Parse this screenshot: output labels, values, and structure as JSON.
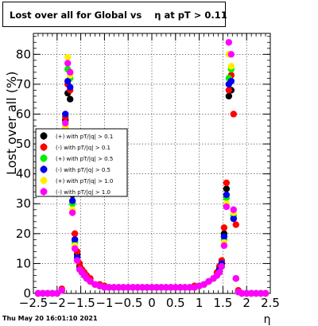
{
  "title": "Lost over all for Global vs    η at pT > 0.11",
  "timestamp": "Thu May 20 16:01:10 2021",
  "chart_data": {
    "type": "scatter",
    "xlabel": "η",
    "ylabel": "Lost over all (%)",
    "xlim": [
      -2.5,
      2.5
    ],
    "ylim": [
      0,
      87
    ],
    "xticks": [
      "−2.5",
      "−2",
      "−1.5",
      "−1",
      "−0.5",
      "0",
      "0.5",
      "1",
      "1.5",
      "2",
      "2.5"
    ],
    "yticks": [
      "0",
      "10",
      "20",
      "30",
      "40",
      "50",
      "60",
      "70",
      "80"
    ],
    "grid": true,
    "legend_position": "left-middle",
    "x": [
      -2.4,
      -2.3,
      -2.2,
      -2.1,
      -2.0,
      -1.9,
      -1.825,
      -1.775,
      -1.725,
      -1.675,
      -1.625,
      -1.575,
      -1.525,
      -1.475,
      -1.425,
      -1.375,
      -1.3,
      -1.2,
      -1.1,
      -1.0,
      -0.9,
      -0.8,
      -0.7,
      -0.6,
      -0.5,
      -0.4,
      -0.3,
      -0.2,
      -0.1,
      0.0,
      0.1,
      0.2,
      0.3,
      0.4,
      0.5,
      0.6,
      0.7,
      0.8,
      0.9,
      1.0,
      1.1,
      1.2,
      1.3,
      1.375,
      1.425,
      1.475,
      1.525,
      1.575,
      1.625,
      1.675,
      1.725,
      1.775,
      1.825,
      1.9,
      2.0,
      2.1,
      2.2,
      2.3,
      2.4
    ],
    "series": [
      {
        "name": "(+) with pT/|q| > 0.1",
        "color": "#000000",
        "values": [
          0,
          0,
          0,
          0,
          0,
          1,
          58,
          67,
          65,
          33,
          18,
          13,
          9,
          7,
          6,
          5,
          4,
          3,
          2.5,
          2,
          2,
          2,
          2,
          2,
          2,
          2,
          2,
          2,
          2,
          2,
          2,
          2,
          2,
          2,
          2,
          2,
          2,
          2,
          2,
          2.5,
          3,
          4,
          5,
          6,
          8,
          10,
          20,
          35,
          66,
          68,
          25,
          5,
          0.5,
          0,
          0,
          0,
          0,
          0,
          0
        ]
      },
      {
        "name": "(-) with pT/|q| > 0.1",
        "color": "#ff0000",
        "values": [
          0,
          0,
          0,
          0,
          0,
          1.5,
          59,
          70,
          68,
          35,
          20,
          14,
          10,
          8,
          7,
          6,
          5,
          3,
          3,
          2.5,
          2,
          2,
          2,
          2,
          2,
          2,
          2,
          2,
          2,
          2,
          2,
          2,
          2,
          2,
          2,
          2,
          2,
          2,
          2.5,
          2.5,
          3,
          4,
          5,
          7,
          9,
          11,
          22,
          37,
          68,
          73,
          60,
          23,
          1,
          0,
          0,
          0,
          0,
          0,
          0
        ]
      },
      {
        "name": "(+) with pT/|q| > 0.5",
        "color": "#00ee00",
        "values": [
          0,
          0,
          0,
          0,
          0,
          1,
          55,
          75,
          72,
          30,
          17,
          12,
          8,
          7,
          6,
          5,
          4,
          3,
          2.5,
          2,
          2,
          2,
          2,
          2,
          2,
          2,
          2,
          2,
          2,
          2,
          2,
          2,
          2,
          2,
          2,
          2,
          2,
          2,
          2,
          2.5,
          3,
          4,
          5,
          6,
          7,
          9,
          18,
          32,
          72,
          75,
          26,
          5,
          0.5,
          0,
          0,
          0,
          0,
          0,
          0
        ]
      },
      {
        "name": "(-) with pT/|q| > 0.5",
        "color": "#0000ee",
        "values": [
          0,
          0,
          0,
          0,
          0,
          1,
          60,
          71,
          69,
          31,
          18,
          12,
          8,
          7,
          6,
          5,
          4,
          3,
          2.5,
          2,
          2,
          2,
          2,
          2,
          2,
          2,
          2,
          2,
          2,
          2,
          2,
          2,
          2,
          2,
          2,
          2,
          2,
          2,
          2,
          2.5,
          3,
          4,
          5,
          6,
          8,
          10,
          19,
          33,
          70,
          71,
          25,
          5,
          0.5,
          0,
          0,
          0,
          0,
          0,
          0
        ]
      },
      {
        "name": "(+) with pT/|q| > 1.0",
        "color": "#ffee00",
        "values": [
          0,
          0,
          0,
          0,
          0,
          1,
          56,
          79,
          73,
          28,
          16,
          11,
          8,
          7,
          6,
          5,
          4,
          3,
          2.5,
          2,
          2,
          2,
          2,
          2,
          2,
          2,
          2,
          2,
          2,
          2,
          2,
          2,
          2,
          2,
          2,
          2,
          2,
          2,
          2,
          2.5,
          3,
          4,
          5,
          6,
          7,
          9,
          17,
          30,
          80,
          76,
          27,
          5,
          0.5,
          0,
          0,
          0,
          0,
          0,
          0
        ]
      },
      {
        "name": "(-) with pT/|q| > 1.0",
        "color": "#ff00ff",
        "values": [
          0,
          0,
          0,
          0,
          0,
          1,
          57,
          77,
          74,
          27,
          15,
          11,
          8,
          7,
          6,
          5,
          4,
          3,
          2.5,
          2,
          2,
          2,
          2,
          2,
          2,
          2,
          2,
          2,
          2,
          2,
          2,
          2,
          2,
          2,
          2,
          2,
          2,
          2,
          2,
          2.5,
          3,
          4,
          5,
          6,
          7,
          9,
          16,
          29,
          84,
          80,
          28,
          5,
          0.5,
          0,
          0,
          0,
          0,
          0,
          0
        ]
      }
    ]
  }
}
